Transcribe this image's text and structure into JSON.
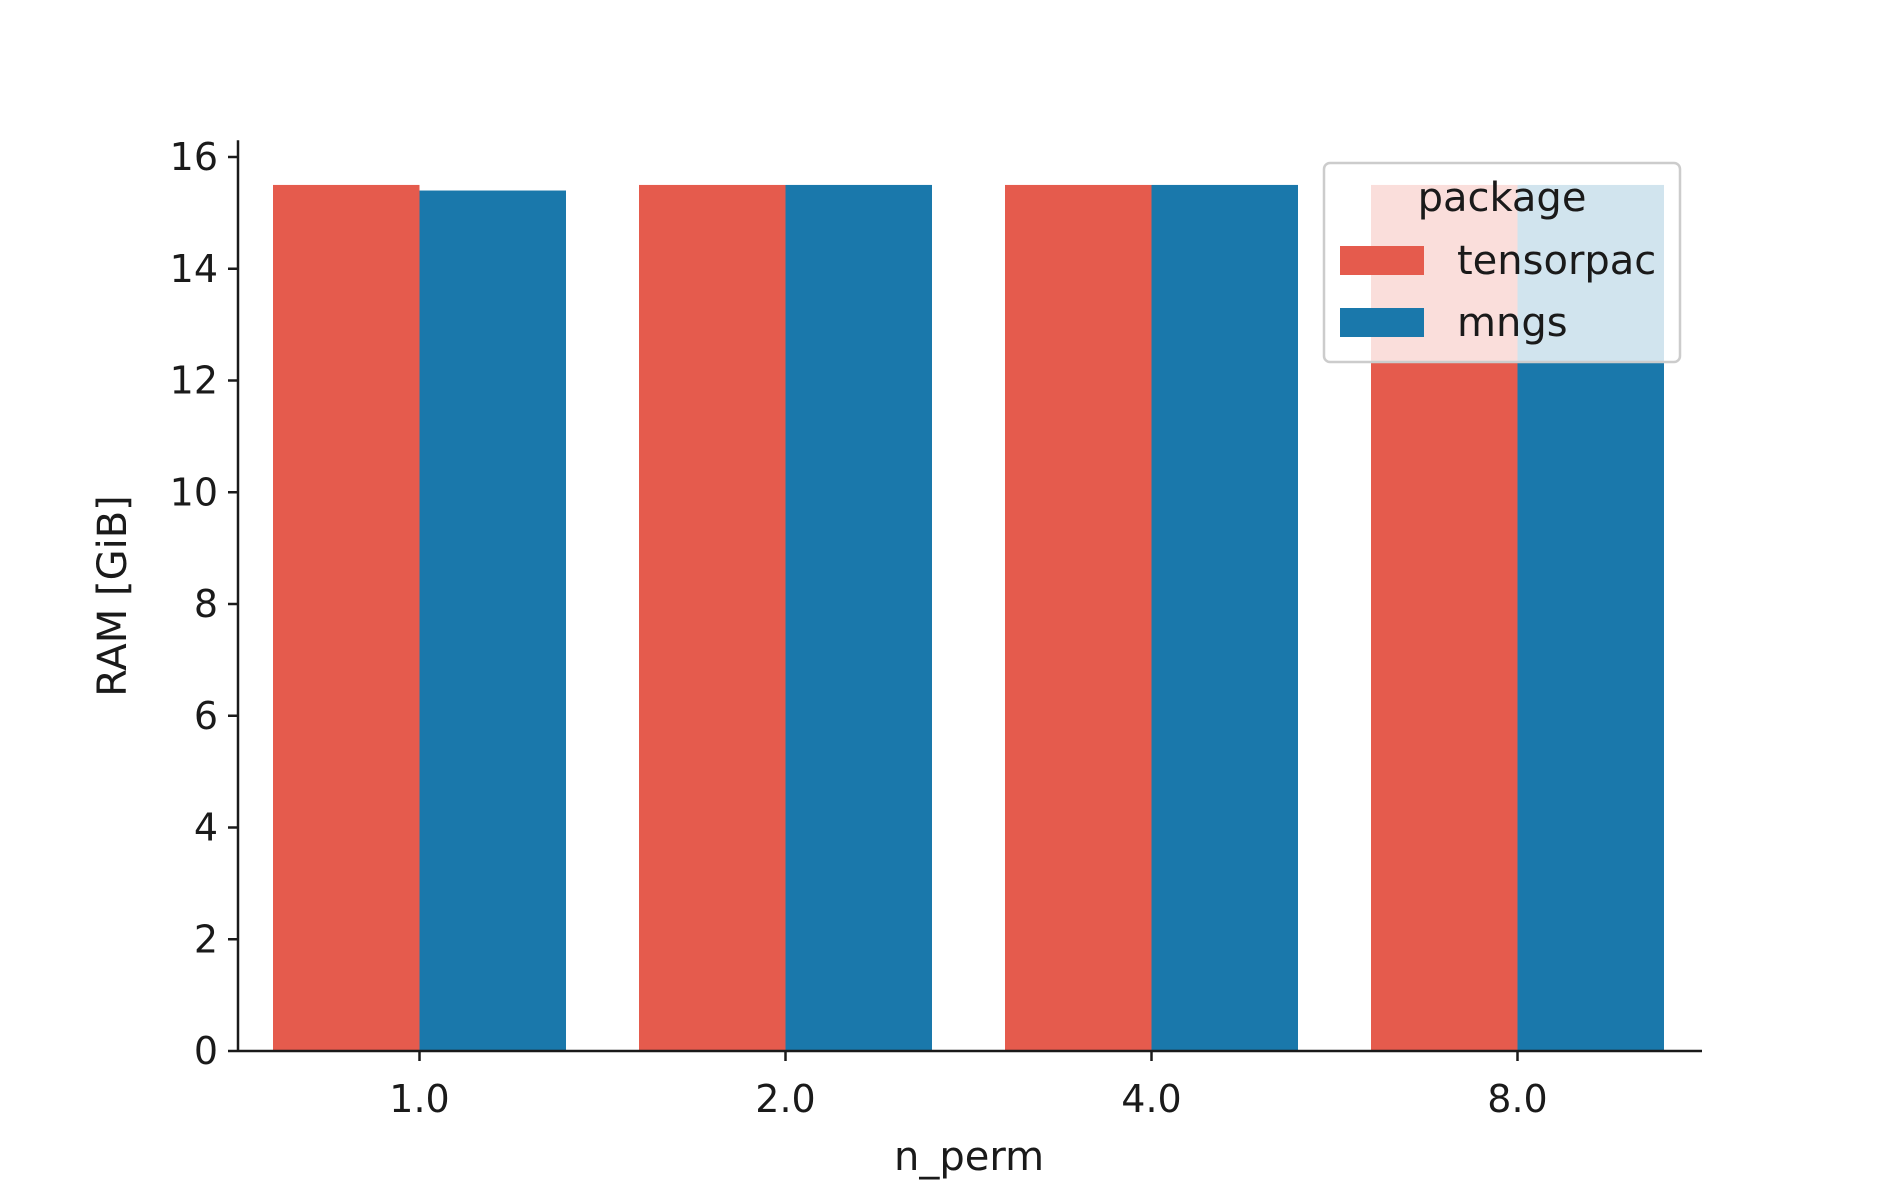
{
  "chart_data": {
    "type": "bar",
    "title": "",
    "xlabel": "n_perm",
    "ylabel": "RAM [GiB]",
    "categories": [
      "1.0",
      "2.0",
      "4.0",
      "8.0"
    ],
    "series": [
      {
        "name": "tensorpac",
        "color": "#e55b4d",
        "values": [
          15.5,
          15.5,
          15.5,
          15.5
        ]
      },
      {
        "name": "mngs",
        "color": "#1a78ab",
        "values": [
          15.4,
          15.5,
          15.5,
          15.5
        ]
      }
    ],
    "ylim": [
      0,
      16.3
    ],
    "yticks": [
      0,
      2,
      4,
      6,
      8,
      10,
      12,
      14,
      16
    ],
    "ytick_labels": [
      "0",
      "2",
      "4",
      "6",
      "8",
      "10",
      "12",
      "14",
      "16"
    ],
    "grid": false,
    "legend": {
      "title": "package",
      "placement": "top-right"
    }
  }
}
